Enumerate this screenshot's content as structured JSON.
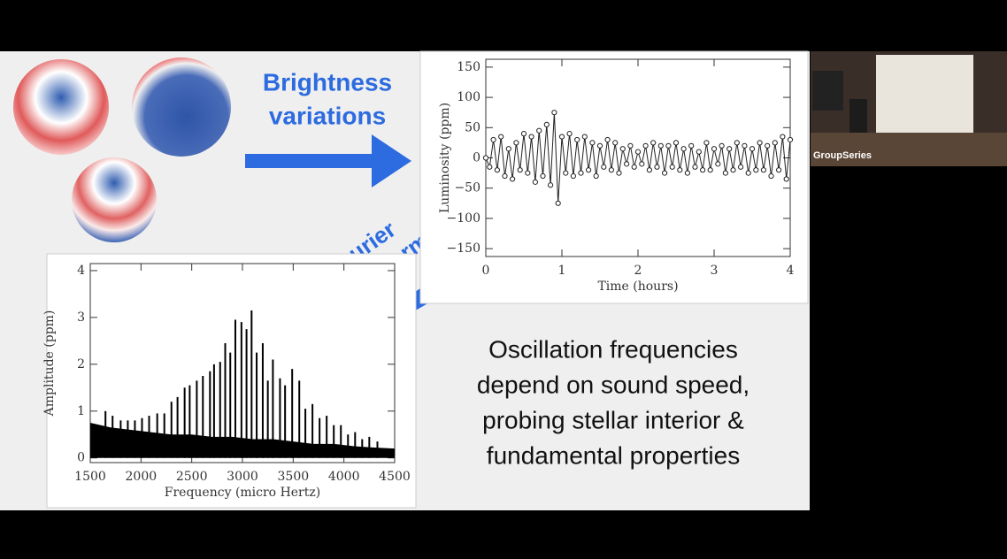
{
  "slide": {
    "arrow_label_1": [
      "Brightness",
      "variations"
    ],
    "arrow_label_2": [
      "Fourier",
      "Transform"
    ],
    "caption": [
      "Oscillation frequencies",
      "depend on sound speed,",
      "probing stellar interior &",
      "fundamental properties"
    ]
  },
  "video": {
    "participant": "GroupSeries"
  },
  "chart_data": [
    {
      "type": "line",
      "ylabel": "Luminosity (ppm)",
      "xlabel": "Time (hours)",
      "color": "#222222",
      "x": [
        0,
        0.05,
        0.1,
        0.15,
        0.2,
        0.25,
        0.3,
        0.35,
        0.4,
        0.45,
        0.5,
        0.55,
        0.6,
        0.65,
        0.7,
        0.75,
        0.8,
        0.85,
        0.9,
        0.95,
        1,
        1.05,
        1.1,
        1.15,
        1.2,
        1.25,
        1.3,
        1.35,
        1.4,
        1.45,
        1.5,
        1.55,
        1.6,
        1.65,
        1.7,
        1.75,
        1.8,
        1.85,
        1.9,
        1.95,
        2,
        2.05,
        2.1,
        2.15,
        2.2,
        2.25,
        2.3,
        2.35,
        2.4,
        2.45,
        2.5,
        2.55,
        2.6,
        2.65,
        2.7,
        2.75,
        2.8,
        2.85,
        2.9,
        2.95,
        3,
        3.05,
        3.1,
        3.15,
        3.2,
        3.25,
        3.3,
        3.35,
        3.4,
        3.45,
        3.5,
        3.55,
        3.6,
        3.65,
        3.7,
        3.75,
        3.8,
        3.85,
        3.9,
        3.95,
        4
      ],
      "values": [
        0,
        -15,
        30,
        -20,
        35,
        -30,
        15,
        -35,
        25,
        -20,
        40,
        -25,
        35,
        -40,
        45,
        -30,
        55,
        -45,
        75,
        -75,
        35,
        -25,
        40,
        -30,
        30,
        -25,
        35,
        -20,
        25,
        -30,
        20,
        -15,
        30,
        -20,
        25,
        -25,
        15,
        -10,
        20,
        -15,
        10,
        -10,
        20,
        -20,
        25,
        -15,
        20,
        -25,
        20,
        -15,
        25,
        -20,
        15,
        -25,
        20,
        -15,
        10,
        -20,
        25,
        -20,
        15,
        -10,
        20,
        -25,
        15,
        -20,
        25,
        -15,
        20,
        -25,
        15,
        -20,
        25,
        -20,
        20,
        -30,
        25,
        -20,
        35,
        -35,
        30
      ],
      "xlim": [
        0,
        4
      ],
      "ylim": [
        -163,
        163
      ],
      "xticks": [
        0,
        1,
        2,
        3,
        4
      ],
      "yticks": [
        150,
        100,
        50,
        0,
        {
          "value": -50,
          "label": "−50"
        },
        {
          "value": -100,
          "label": "−100"
        },
        {
          "value": -150,
          "label": "−150"
        }
      ]
    },
    {
      "type": "stem",
      "ylabel": "Amplitude (ppm)",
      "xlabel": "Frequency (micro Hertz)",
      "color": "#000000",
      "x": [
        1650,
        1720,
        1800,
        1870,
        1940,
        2010,
        2080,
        2160,
        2230,
        2300,
        2360,
        2430,
        2480,
        2550,
        2610,
        2680,
        2720,
        2780,
        2830,
        2880,
        2930,
        2990,
        3040,
        3090,
        3140,
        3200,
        3250,
        3300,
        3370,
        3420,
        3490,
        3560,
        3620,
        3690,
        3760,
        3830,
        3900,
        3970,
        4040,
        4110,
        4180,
        4250,
        4330
      ],
      "values": [
        1.0,
        0.9,
        0.8,
        0.8,
        0.8,
        0.85,
        0.9,
        0.95,
        0.95,
        1.2,
        1.3,
        1.5,
        1.55,
        1.65,
        1.75,
        1.85,
        2.0,
        2.05,
        2.45,
        2.25,
        2.95,
        2.9,
        2.75,
        3.15,
        2.25,
        2.45,
        1.65,
        2.1,
        1.7,
        1.55,
        1.9,
        1.65,
        1.05,
        1.15,
        0.85,
        0.9,
        0.7,
        0.7,
        0.5,
        0.55,
        0.4,
        0.45,
        0.35
      ],
      "noise_x": [
        1500,
        1700,
        1900,
        2100,
        2300,
        2500,
        2700,
        2900,
        3100,
        3300,
        3500,
        3700,
        3900,
        4100,
        4300,
        4500
      ],
      "noise_values": [
        0.75,
        0.65,
        0.6,
        0.55,
        0.5,
        0.5,
        0.45,
        0.45,
        0.4,
        0.4,
        0.35,
        0.3,
        0.3,
        0.25,
        0.22,
        0.2
      ],
      "xlim": [
        1500,
        4500
      ],
      "ylim": [
        -0.1,
        4.15
      ],
      "xticks": [
        1500,
        2000,
        2500,
        3000,
        3500,
        4000,
        4500
      ],
      "yticks": [
        0,
        1,
        2,
        3,
        4
      ]
    }
  ]
}
